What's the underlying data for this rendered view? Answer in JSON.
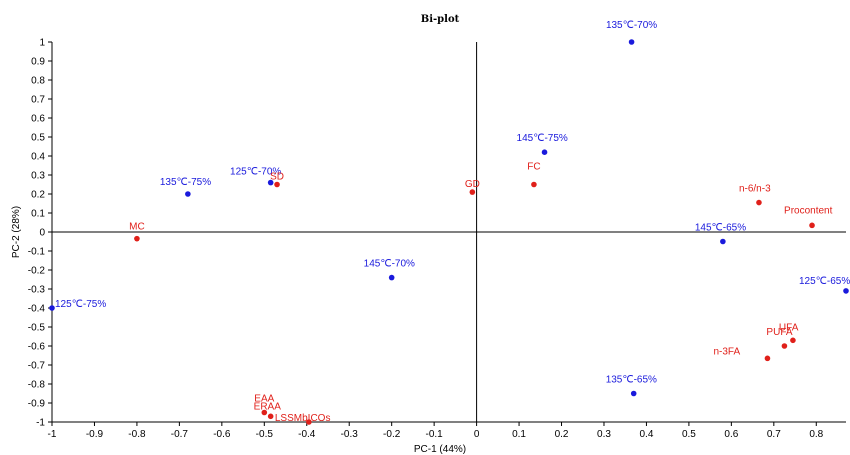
{
  "chart_data": {
    "type": "scatter",
    "title": "Bi-plot",
    "xlabel": "PC-1 (44%)",
    "ylabel": "PC-2 (28%)",
    "xlim": [
      -1,
      0.87
    ],
    "ylim": [
      -1,
      1
    ],
    "x_ticks": [
      -1,
      -0.9,
      -0.8,
      -0.7,
      -0.6,
      -0.5,
      -0.4,
      -0.3,
      -0.2,
      -0.1,
      0,
      0.1,
      0.2,
      0.3,
      0.4,
      0.5,
      0.6,
      0.7,
      0.8
    ],
    "y_ticks": [
      1,
      0.9,
      0.8,
      0.7,
      0.6,
      0.5,
      0.4,
      0.3,
      0.2,
      0.1,
      0,
      -0.1,
      -0.2,
      -0.3,
      -0.4,
      -0.5,
      -0.6,
      -0.7,
      -0.8,
      -0.9,
      -1
    ],
    "grid": false,
    "colors": {
      "samples": "#1a1adc",
      "variables": "#e0201a"
    },
    "series": [
      {
        "kind": "samples",
        "points": [
          {
            "label": "135℃-70%",
            "x": 0.365,
            "y": 1.0
          },
          {
            "label": "145℃-75%",
            "x": 0.16,
            "y": 0.42
          },
          {
            "label": "125℃-70%",
            "x": -0.485,
            "y": 0.26
          },
          {
            "label": "135℃-75%",
            "x": -0.68,
            "y": 0.2
          },
          {
            "label": "145℃-65%",
            "x": 0.58,
            "y": -0.05
          },
          {
            "label": "145℃-70%",
            "x": -0.2,
            "y": -0.24
          },
          {
            "label": "125℃-75%",
            "x": -1.0,
            "y": -0.4
          },
          {
            "label": "125℃-65%",
            "x": 0.87,
            "y": -0.31
          },
          {
            "label": "135℃-65%",
            "x": 0.37,
            "y": -0.85
          }
        ]
      },
      {
        "kind": "variables",
        "points": [
          {
            "label": "SD",
            "x": -0.47,
            "y": 0.25
          },
          {
            "label": "GD",
            "x": -0.01,
            "y": 0.21
          },
          {
            "label": "FC",
            "x": 0.135,
            "y": 0.25
          },
          {
            "label": "n-6/n-3",
            "x": 0.665,
            "y": 0.155
          },
          {
            "label": "Procontent",
            "x": 0.79,
            "y": 0.035
          },
          {
            "label": "MC",
            "x": -0.8,
            "y": -0.035
          },
          {
            "label": "UFA",
            "x": 0.745,
            "y": -0.57
          },
          {
            "label": "PUFA",
            "x": 0.725,
            "y": -0.6
          },
          {
            "label": "n-3FA",
            "x": 0.685,
            "y": -0.665
          },
          {
            "label": "EAA",
            "x": -0.5,
            "y": -0.95
          },
          {
            "label": "ERAA",
            "x": -0.485,
            "y": -0.97
          },
          {
            "label": "LSSMbICOs",
            "x": -0.395,
            "y": -1.0
          }
        ]
      }
    ]
  }
}
